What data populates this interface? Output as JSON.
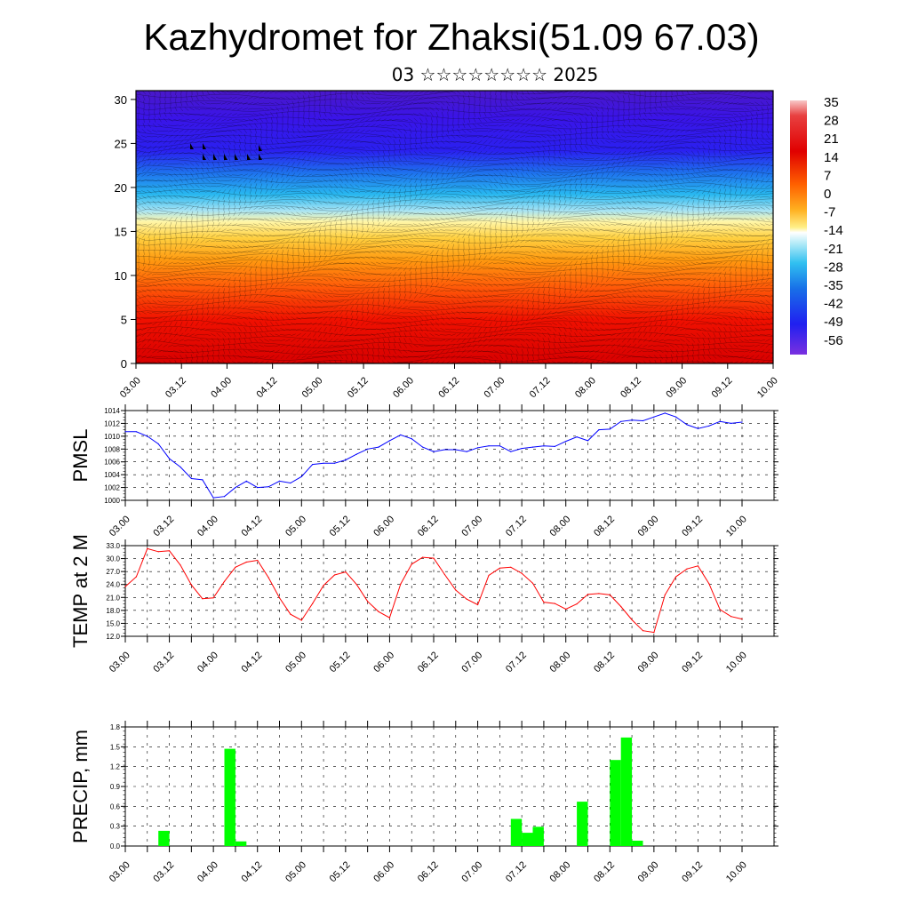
{
  "title": "Kazhydromet for Zhaksi(51.09 67.03)",
  "subtitle": "03 ☆☆☆☆☆☆☆☆ 2025",
  "x_ticks": [
    "03.00",
    "03.12",
    "04.00",
    "04.12",
    "05.00",
    "05.12",
    "06.00",
    "06.12",
    "07.00",
    "07.12",
    "08.00",
    "08.12",
    "09.00",
    "09.12",
    "10.00"
  ],
  "chart_data": [
    {
      "type": "heatmap",
      "ylim": [
        0,
        31
      ],
      "y_ticks": [
        "0",
        "5",
        "10",
        "15",
        "20",
        "25",
        "30"
      ],
      "colorbar_labels": [
        "35",
        "28",
        "21",
        "14",
        "7",
        "0",
        "-7",
        "-14",
        "-21",
        "-28",
        "-35",
        "-42",
        "-49",
        "-56"
      ],
      "colors": {
        "warm": "#ff0000",
        "mid": "#ffe060",
        "cold": "#2a10f0"
      }
    },
    {
      "type": "line",
      "ylabel": "PMSL",
      "ylim": [
        1000,
        1014
      ],
      "y_ticks": [
        "1014",
        "1012",
        "1010",
        "1008",
        "1006",
        "1004",
        "1002",
        "1000"
      ],
      "color": "#0000ff",
      "x": [
        0,
        3,
        6,
        9,
        12,
        15,
        18,
        21,
        24,
        27,
        30,
        33,
        36,
        39,
        42,
        45,
        48,
        51,
        54,
        57,
        60,
        63,
        66,
        69,
        72,
        75,
        78,
        81,
        84,
        87,
        90,
        93,
        96,
        99,
        102,
        105,
        108,
        111,
        114,
        117,
        120,
        123,
        126,
        129,
        132,
        135,
        138,
        141,
        144,
        147,
        150,
        153,
        156,
        159,
        162,
        165,
        168
      ],
      "values": [
        1010.7,
        1010.7,
        1010.0,
        1008.8,
        1006.5,
        1005.2,
        1003.4,
        1003.2,
        1000.4,
        1000.6,
        1002.0,
        1003.0,
        1002.0,
        1002.1,
        1003.0,
        1002.7,
        1003.7,
        1005.6,
        1005.8,
        1005.8,
        1006.3,
        1007.2,
        1008.0,
        1008.3,
        1009.3,
        1010.2,
        1009.6,
        1008.3,
        1007.6,
        1007.9,
        1007.9,
        1007.6,
        1008.2,
        1008.5,
        1008.5,
        1007.6,
        1008.1,
        1008.3,
        1008.5,
        1008.4,
        1009.2,
        1009.9,
        1009.3,
        1011.0,
        1011.1,
        1012.3,
        1012.5,
        1012.4,
        1013.0,
        1013.6,
        1013.0,
        1011.8,
        1011.2,
        1011.6,
        1012.3,
        1012.0,
        1012.2
      ]
    },
    {
      "type": "line",
      "ylabel": "TEMP at 2 M",
      "ylim": [
        12,
        33
      ],
      "y_ticks": [
        "33.0",
        "30.0",
        "27.0",
        "24.0",
        "21.0",
        "18.0",
        "15.0",
        "12.0"
      ],
      "color": "#ff0000",
      "x": [
        0,
        3,
        6,
        9,
        12,
        15,
        18,
        21,
        24,
        27,
        30,
        33,
        36,
        39,
        42,
        45,
        48,
        51,
        54,
        57,
        60,
        63,
        66,
        69,
        72,
        75,
        78,
        81,
        84,
        87,
        90,
        93,
        96,
        99,
        102,
        105,
        108,
        111,
        114,
        117,
        120,
        123,
        126,
        129,
        132,
        135,
        138,
        141,
        144,
        147,
        150,
        153,
        156,
        159,
        162,
        165,
        168
      ],
      "values": [
        23.5,
        25.8,
        32.3,
        31.6,
        31.8,
        28.5,
        23.9,
        20.7,
        20.9,
        24.7,
        28.0,
        29.2,
        29.6,
        25.6,
        20.9,
        17.1,
        15.7,
        19.6,
        23.8,
        26.2,
        26.9,
        24.0,
        20.1,
        17.7,
        16.3,
        24.1,
        28.7,
        30.3,
        30.1,
        26.3,
        22.7,
        20.6,
        19.3,
        26.1,
        27.8,
        28.0,
        26.6,
        24.3,
        19.9,
        19.6,
        18.3,
        19.5,
        21.7,
        21.9,
        21.6,
        18.9,
        15.8,
        13.3,
        12.9,
        21.6,
        25.8,
        27.6,
        28.3,
        24.2,
        18.2,
        16.6,
        16.0
      ]
    },
    {
      "type": "bar",
      "ylabel": "PRECIP, mm",
      "ylim": [
        0,
        1.8
      ],
      "y_ticks": [
        "1.8",
        "1.5",
        "1.2",
        "0.9",
        "0.6",
        "0.3",
        "0.0"
      ],
      "color": "#00ff00",
      "x": [
        9,
        27,
        30,
        105,
        108,
        111,
        123,
        132,
        135,
        138
      ],
      "values": [
        0.23,
        1.47,
        0.07,
        0.41,
        0.2,
        0.29,
        0.67,
        1.3,
        1.64,
        0.08
      ]
    }
  ]
}
